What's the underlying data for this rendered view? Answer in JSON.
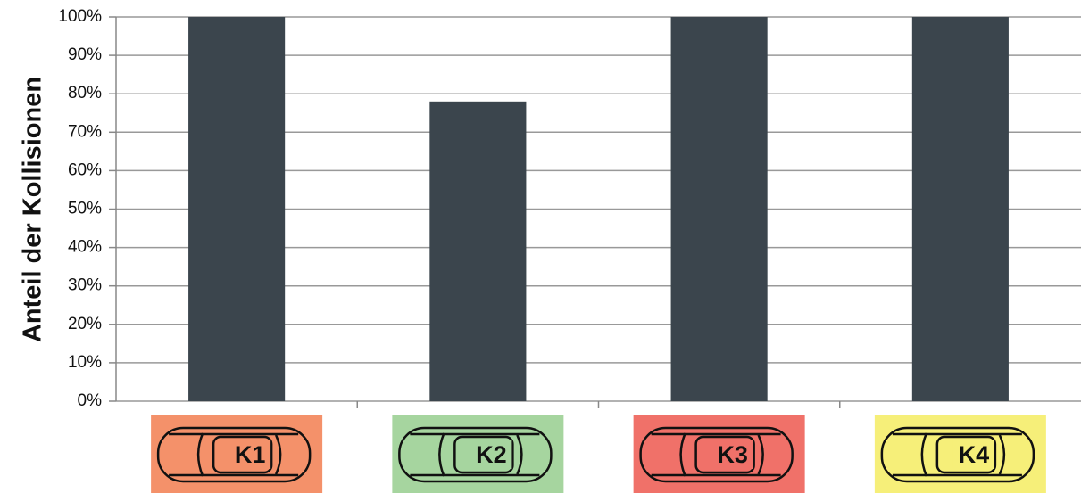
{
  "chart_data": {
    "type": "bar",
    "y_label": "Anteil der Kollisionen",
    "categories": [
      "K1",
      "K2",
      "K3",
      "K4"
    ],
    "values": [
      100,
      78,
      100,
      100
    ],
    "color": "#3b454d",
    "category_colors": [
      "#f4916a",
      "#a6d59f",
      "#f07169",
      "#f6ef79"
    ],
    "ylim": [
      0,
      100
    ],
    "yticks": [
      {
        "value": 0,
        "label": "0%"
      },
      {
        "value": 10,
        "label": "10%"
      },
      {
        "value": 20,
        "label": "20%"
      },
      {
        "value": 30,
        "label": "30%"
      },
      {
        "value": 40,
        "label": "40%"
      },
      {
        "value": 50,
        "label": "50%"
      },
      {
        "value": 60,
        "label": "60%"
      },
      {
        "value": 70,
        "label": "70%"
      },
      {
        "value": 80,
        "label": "80%"
      },
      {
        "value": 90,
        "label": "90%"
      },
      {
        "value": 100,
        "label": "100%"
      }
    ],
    "grid": true
  }
}
